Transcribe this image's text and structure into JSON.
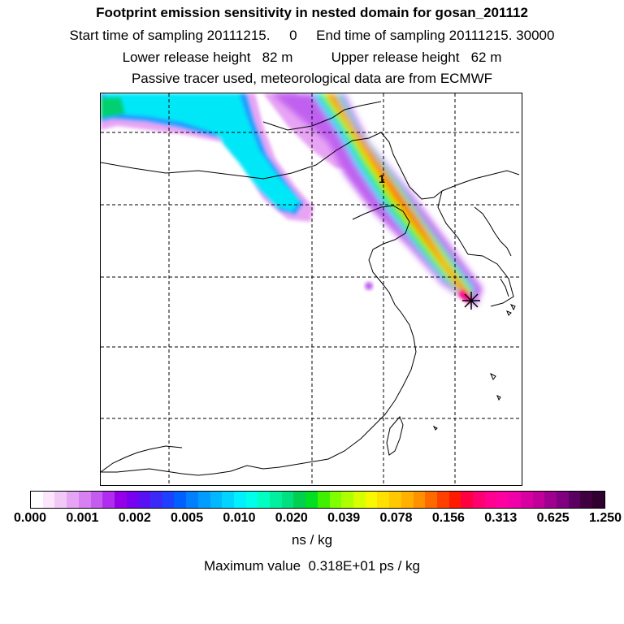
{
  "header": {
    "title": "Footprint emission sensitivity in nested domain for gosan_201112",
    "sampling_line": "Start time of sampling 20111215.     0     End time of sampling 20111215. 30000",
    "height_line": "Lower release height   82 m          Upper release height   62 m",
    "tracer_line": "Passive tracer used, meteorological data are from ECMWF"
  },
  "map": {
    "point_label": "1",
    "receptor_marker": "star-icon",
    "colors": {
      "coast": "#000000",
      "grid": "#000000"
    }
  },
  "colorbar": {
    "tick_labels": [
      "0.000",
      "0.001",
      "0.002",
      "0.005",
      "0.010",
      "0.020",
      "0.039",
      "0.078",
      "0.156",
      "0.313",
      "0.625",
      "1.250"
    ],
    "colors": [
      "#ffffff",
      "#fbe6fb",
      "#f2c8f7",
      "#e6a4f4",
      "#d680f2",
      "#c45cf0",
      "#b02cee",
      "#9400e8",
      "#7a00f0",
      "#5a10f5",
      "#3a2af8",
      "#1f40ff",
      "#0060ff",
      "#0080ff",
      "#009cff",
      "#00b8ff",
      "#00d4ff",
      "#00f0ff",
      "#00ffea",
      "#00ffc0",
      "#00f0a0",
      "#00e080",
      "#00d050",
      "#00e020",
      "#40f000",
      "#80ff00",
      "#b0ff00",
      "#d8ff00",
      "#f8f800",
      "#ffe000",
      "#ffc800",
      "#ffb000",
      "#ff9000",
      "#ff6a00",
      "#ff4000",
      "#ff1a00",
      "#ff0040",
      "#ff0070",
      "#ff0090",
      "#ff00a0",
      "#f000a8",
      "#d800a0",
      "#c00098",
      "#a00090",
      "#800080",
      "#5a0060",
      "#400040",
      "#300030"
    ],
    "units": "ns / kg"
  },
  "footer": {
    "max_line": "Maximum value  0.318E+01 ps / kg"
  }
}
